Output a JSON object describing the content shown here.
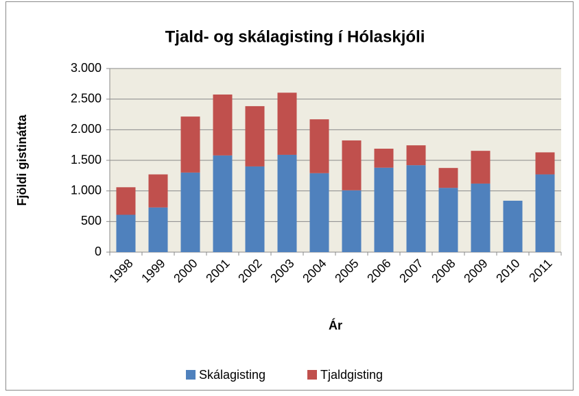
{
  "chart_data": {
    "type": "stacked_bar",
    "title": "Tjald- og skálagisting í Hólaskjóli",
    "x_label": "Ár",
    "y_label": "Fjöldi gistinátta",
    "categories": [
      "1998",
      "1999",
      "2000",
      "2001",
      "2002",
      "2003",
      "2004",
      "2005",
      "2006",
      "2007",
      "2008",
      "2009",
      "2010",
      "2011"
    ],
    "series": [
      {
        "name": "Skálagisting",
        "color": "#4f81bd",
        "values": [
          610,
          730,
          1300,
          1580,
          1400,
          1590,
          1290,
          1010,
          1380,
          1420,
          1050,
          1120,
          840,
          1270
        ]
      },
      {
        "name": "Tjaldgisting",
        "color": "#c0504d",
        "values": [
          450,
          540,
          915,
          995,
          985,
          1015,
          880,
          815,
          310,
          325,
          325,
          535,
          0,
          360
        ]
      }
    ],
    "ylim": [
      0,
      3000
    ],
    "yticks": [
      0,
      500,
      {
        "value": 1000,
        "label": "1.000"
      },
      {
        "value": 1500,
        "label": "1.500"
      },
      {
        "value": 2000,
        "label": "2.000"
      },
      {
        "value": 2500,
        "label": "2.500"
      },
      {
        "value": 3000,
        "label": "3.000"
      }
    ],
    "grid": true,
    "legend": "bottom"
  }
}
